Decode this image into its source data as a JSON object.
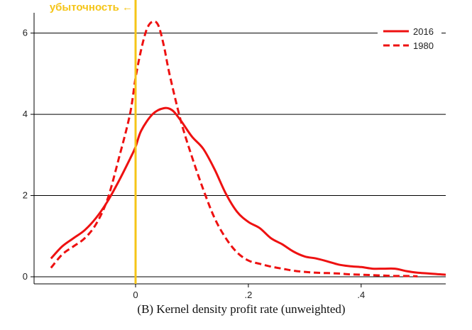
{
  "chart_data": {
    "type": "line",
    "title": "(B) Kernel density profit rate (unweighted)",
    "xlim": [
      -0.18,
      0.55
    ],
    "ylim": [
      0,
      6.5
    ],
    "xticks": [
      0,
      0.2,
      0.4
    ],
    "xtick_labels": [
      "0",
      ".2",
      ".4"
    ],
    "yticks": [
      0,
      2,
      4,
      6
    ],
    "ytick_labels": [
      "0",
      "2",
      "4",
      "6"
    ],
    "grid": "horizontal",
    "legend": "top-right",
    "vline": {
      "x": 0,
      "color": "#f5c518",
      "label": "убыточность ←"
    },
    "series": [
      {
        "name": "2016",
        "style": "solid",
        "color": "#ee1111",
        "x": [
          -0.15,
          -0.13,
          -0.11,
          -0.09,
          -0.07,
          -0.05,
          -0.03,
          -0.01,
          0.0,
          0.01,
          0.03,
          0.05,
          0.065,
          0.08,
          0.1,
          0.12,
          0.14,
          0.16,
          0.18,
          0.2,
          0.22,
          0.24,
          0.26,
          0.28,
          0.3,
          0.32,
          0.34,
          0.36,
          0.38,
          0.4,
          0.42,
          0.44,
          0.46,
          0.48,
          0.5,
          0.52,
          0.55
        ],
        "y": [
          0.45,
          0.75,
          0.95,
          1.15,
          1.45,
          1.85,
          2.35,
          2.9,
          3.2,
          3.6,
          4.0,
          4.15,
          4.1,
          3.85,
          3.45,
          3.15,
          2.65,
          2.05,
          1.6,
          1.35,
          1.2,
          0.95,
          0.8,
          0.62,
          0.5,
          0.45,
          0.38,
          0.3,
          0.26,
          0.24,
          0.2,
          0.2,
          0.2,
          0.14,
          0.1,
          0.08,
          0.05
        ]
      },
      {
        "name": "1980",
        "style": "dashed",
        "color": "#ee1111",
        "x": [
          -0.15,
          -0.13,
          -0.11,
          -0.09,
          -0.07,
          -0.05,
          -0.03,
          -0.01,
          0.0,
          0.01,
          0.02,
          0.03,
          0.04,
          0.05,
          0.06,
          0.08,
          0.1,
          0.12,
          0.14,
          0.16,
          0.18,
          0.2,
          0.22,
          0.24,
          0.26,
          0.28,
          0.3,
          0.32,
          0.34,
          0.36,
          0.38,
          0.4,
          0.42,
          0.44,
          0.46,
          0.48,
          0.5
        ],
        "y": [
          0.22,
          0.55,
          0.75,
          0.95,
          1.3,
          1.9,
          2.9,
          4.0,
          4.9,
          5.6,
          6.1,
          6.28,
          6.2,
          5.7,
          5.0,
          3.85,
          2.95,
          2.15,
          1.45,
          0.95,
          0.6,
          0.4,
          0.32,
          0.25,
          0.2,
          0.15,
          0.12,
          0.1,
          0.09,
          0.08,
          0.06,
          0.05,
          0.04,
          0.03,
          0.02,
          0.02,
          0.01
        ]
      }
    ]
  }
}
